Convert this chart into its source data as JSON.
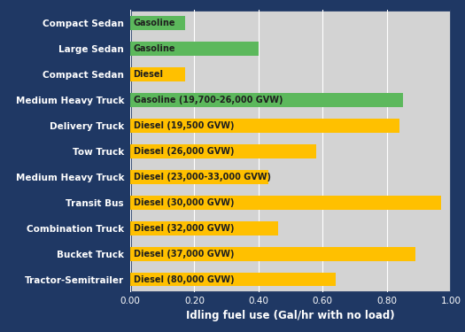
{
  "categories": [
    "Tractor-Semitrailer",
    "Bucket Truck",
    "Combination Truck",
    "Transit Bus",
    "Medium Heavy Truck",
    "Tow Truck",
    "Delivery Truck",
    "Medium Heavy Truck",
    "Compact Sedan",
    "Large Sedan",
    "Compact Sedan"
  ],
  "labels": [
    "Diesel (80,000 GVW)",
    "Diesel (37,000 GVW)",
    "Diesel (32,000 GVW)",
    "Diesel (30,000 GVW)",
    "Diesel (23,000-33,000 GVW)",
    "Diesel (26,000 GVW)",
    "Diesel (19,500 GVW)",
    "Gasoline (19,700-26,000 GVW)",
    "Diesel",
    "Gasoline",
    "Gasoline"
  ],
  "values": [
    0.64,
    0.89,
    0.46,
    0.97,
    0.43,
    0.58,
    0.84,
    0.85,
    0.17,
    0.4,
    0.17
  ],
  "colors": [
    "#FFC000",
    "#FFC000",
    "#FFC000",
    "#FFC000",
    "#FFC000",
    "#FFC000",
    "#FFC000",
    "#5CB85C",
    "#FFC000",
    "#5CB85C",
    "#5CB85C"
  ],
  "xlabel": "Idling fuel use (Gal/hr with no load)",
  "xlim": [
    0.0,
    1.0
  ],
  "xticks": [
    0.0,
    0.2,
    0.4,
    0.6,
    0.8,
    1.0
  ],
  "background_color": "#1F3864",
  "plot_bg_left": "#CCCCCC",
  "plot_bg_right": "#E8E8E8",
  "bar_text_color": "#1F1F1F",
  "label_text_color": "#FFFFFF",
  "xlabel_color": "#FFFFFF",
  "xtick_color": "#FFFFFF",
  "bar_height": 0.55,
  "figsize": [
    5.25,
    3.75
  ],
  "dpi": 100,
  "label_fontsize": 7.5,
  "bar_label_fontsize": 7.0,
  "ylabel_fontsize": 8,
  "xlabel_fontsize": 8.5
}
